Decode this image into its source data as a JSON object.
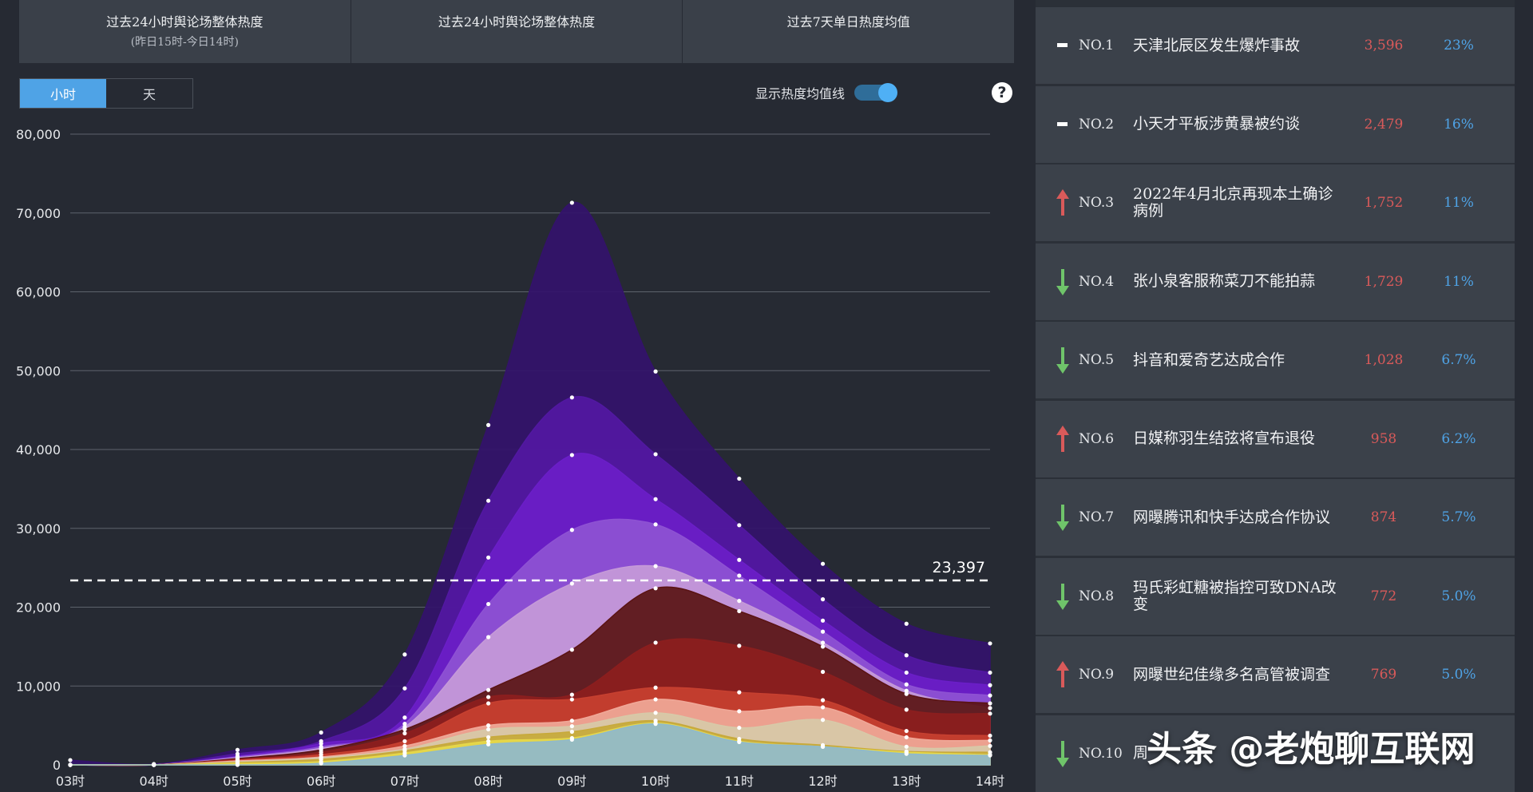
{
  "header": {
    "tabs": [
      {
        "label": "过去24小时舆论场整体热度",
        "sub": "(昨日15时-今日14时)"
      },
      {
        "label": "过去24小时舆论场整体热度",
        "sub": ""
      },
      {
        "label": "过去7天单日热度均值",
        "sub": ""
      }
    ]
  },
  "controls": {
    "seg": [
      "小时",
      "天"
    ],
    "toggle_label": "显示热度均值线",
    "help": "?"
  },
  "chart_data": {
    "type": "area",
    "stacked": true,
    "x": [
      "03时",
      "04时",
      "05时",
      "06时",
      "07时",
      "08时",
      "09时",
      "10时",
      "11时",
      "12时",
      "13时",
      "14时"
    ],
    "yticks": [
      "0",
      "10,000",
      "20,000",
      "30,000",
      "40,000",
      "50,000",
      "60,000",
      "70,000",
      "80,000"
    ],
    "ylim": [
      0,
      80000
    ],
    "avg_line": {
      "value": 23397,
      "label": "23,397"
    },
    "grid": true,
    "series_cumulative_top": [
      {
        "color": "#8fb9cc",
        "values": [
          0,
          0,
          0,
          200,
          1200,
          2600,
          3200,
          5200,
          2900,
          2300,
          1400,
          1200
        ]
      },
      {
        "color": "#e6d84a",
        "values": [
          0,
          0,
          200,
          400,
          1500,
          3000,
          3400,
          5300,
          3000,
          2300,
          1600,
          1300
        ]
      },
      {
        "color": "#c7a93a",
        "values": [
          0,
          0,
          300,
          700,
          1800,
          3500,
          4200,
          5600,
          3300,
          2500,
          1700,
          1600
        ]
      },
      {
        "color": "#d7c9a8",
        "values": [
          0,
          0,
          400,
          900,
          2000,
          4500,
          4900,
          6600,
          4700,
          5700,
          2300,
          2400
        ]
      },
      {
        "color": "#f0a898",
        "values": [
          0,
          0,
          500,
          1000,
          2400,
          5000,
          5600,
          8300,
          6800,
          7300,
          3500,
          3100
        ]
      },
      {
        "color": "#c74030",
        "values": [
          0,
          0,
          600,
          1300,
          3000,
          7800,
          8300,
          9800,
          9200,
          8200,
          4300,
          3700
        ]
      },
      {
        "color": "#8c1e1e",
        "values": [
          0,
          0,
          700,
          1600,
          4000,
          8600,
          8900,
          15500,
          15100,
          11800,
          7000,
          6500
        ]
      },
      {
        "color": "#5a1313",
        "values": [
          0,
          0,
          800,
          1900,
          4500,
          9500,
          14600,
          22400,
          19500,
          15000,
          9000,
          7800
        ]
      },
      {
        "color": "#c59ad8",
        "values": [
          0,
          0,
          900,
          2100,
          4800,
          16200,
          23000,
          25200,
          20800,
          15500,
          9400,
          7200
        ]
      },
      {
        "color": "#8e52d3",
        "values": [
          0,
          0,
          1000,
          2300,
          5200,
          20400,
          29800,
          30500,
          24000,
          16900,
          10200,
          8800
        ]
      },
      {
        "color": "#6b1ec8",
        "values": [
          0,
          0,
          1100,
          2700,
          6000,
          26300,
          39300,
          33700,
          26000,
          18300,
          11700,
          10100
        ]
      },
      {
        "color": "#5218a2",
        "values": [
          0,
          0,
          1400,
          3000,
          9700,
          33500,
          46600,
          39400,
          30400,
          21000,
          13900,
          11700
        ]
      },
      {
        "color": "#33126b",
        "values": [
          600,
          100,
          1900,
          4100,
          14000,
          43100,
          71300,
          49900,
          36300,
          25500,
          17900,
          15400
        ]
      }
    ]
  },
  "ranking": [
    {
      "ind": "same",
      "no": "NO.1",
      "title": "天津北辰区发生爆炸事故",
      "val": "3,596",
      "pct": "23%"
    },
    {
      "ind": "same",
      "no": "NO.2",
      "title": "小天才平板涉黄暴被约谈",
      "val": "2,479",
      "pct": "16%"
    },
    {
      "ind": "up",
      "no": "NO.3",
      "title": "2022年4月北京再现本土确诊病例",
      "val": "1,752",
      "pct": "11%"
    },
    {
      "ind": "down",
      "no": "NO.4",
      "title": "张小泉客服称菜刀不能拍蒜",
      "val": "1,729",
      "pct": "11%"
    },
    {
      "ind": "down",
      "no": "NO.5",
      "title": "抖音和爱奇艺达成合作",
      "val": "1,028",
      "pct": "6.7%"
    },
    {
      "ind": "up",
      "no": "NO.6",
      "title": "日媒称羽生结弦将宣布退役",
      "val": "958",
      "pct": "6.2%"
    },
    {
      "ind": "down",
      "no": "NO.7",
      "title": "网曝腾讯和快手达成合作协议",
      "val": "874",
      "pct": "5.7%"
    },
    {
      "ind": "down",
      "no": "NO.8",
      "title": "玛氏彩虹糖被指控可致DNA改变",
      "val": "772",
      "pct": "5.0%"
    },
    {
      "ind": "up",
      "no": "NO.9",
      "title": "网曝世纪佳缘多名高管被调查",
      "val": "769",
      "pct": "5.0%"
    },
    {
      "ind": "down",
      "no": "NO.10",
      "title": "周",
      "val": "",
      "pct": ""
    }
  ],
  "watermark": "头条 @老炮聊互联网"
}
